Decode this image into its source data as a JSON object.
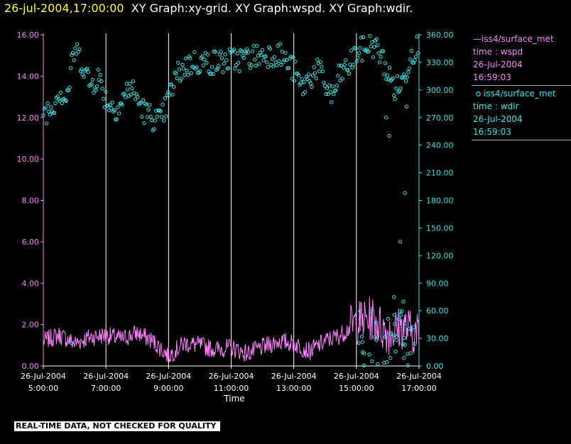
{
  "title": {
    "datetime": "26-jul-2004,17:00:00",
    "graphs": "XY Graph:xy-grid.  XY Graph:wspd.  XY Graph:wdir."
  },
  "legend": {
    "wspd": {
      "source": "iss4/surface_met",
      "variable": "time : wspd",
      "date": "26-Jul-2004",
      "time": "16:59:03"
    },
    "wdir": {
      "source": "iss4/surface_met",
      "variable": "time : wdir",
      "date": "26-Jul-2004",
      "time": "16:59:03"
    }
  },
  "banner": "REAL-TIME DATA, NOT CHECKED FOR QUALITY",
  "colors": {
    "wspd": "#ff80ff",
    "wdir": "#33e6e6",
    "title_date": "#ffff33",
    "grid": "#ffffff"
  },
  "chart_data": {
    "type": "line",
    "xlabel": "Time",
    "x_ticks": [
      {
        "hour": 5,
        "date": "26-Jul-2004",
        "time": "5:00:00"
      },
      {
        "hour": 7,
        "date": "26-Jul-2004",
        "time": "7:00:00"
      },
      {
        "hour": 9,
        "date": "26-Jul-2004",
        "time": "9:00:00"
      },
      {
        "hour": 11,
        "date": "26-Jul-2004",
        "time": "11:00:00"
      },
      {
        "hour": 13,
        "date": "26-Jul-2004",
        "time": "13:00:00"
      },
      {
        "hour": 15,
        "date": "26-Jul-2004",
        "time": "15:00:00"
      },
      {
        "hour": 17,
        "date": "26-Jul-2004",
        "time": "17:00:00"
      }
    ],
    "xlim_hours": [
      5,
      17
    ],
    "y_left": {
      "ylim": [
        0,
        16
      ],
      "ticks": [
        "0.00",
        "2.00",
        "4.00",
        "6.00",
        "8.00",
        "10.00",
        "12.00",
        "14.00",
        "16.00"
      ]
    },
    "y_right": {
      "ylim": [
        0,
        360
      ],
      "ticks": [
        "0.00",
        "30.00",
        "60.00",
        "90.00",
        "120.00",
        "150.00",
        "180.00",
        "210.00",
        "240.00",
        "270.00",
        "300.00",
        "330.00",
        "360.00"
      ]
    },
    "grid": "vertical lines at x ticks",
    "series": [
      {
        "name": "iss4/surface_met time : wspd",
        "axis": "left",
        "style": "line",
        "x": [
          5.0,
          5.5,
          6.0,
          6.5,
          7.0,
          7.5,
          8.0,
          8.5,
          9.0,
          9.5,
          10.0,
          10.5,
          11.0,
          11.5,
          12.0,
          12.5,
          13.0,
          13.5,
          14.0,
          14.5,
          15.0,
          15.5,
          16.0,
          16.5,
          17.0
        ],
        "y": [
          1.2,
          1.5,
          1.1,
          1.4,
          1.5,
          1.3,
          1.6,
          1.2,
          0.5,
          1.1,
          1.0,
          0.8,
          0.9,
          0.6,
          0.9,
          1.2,
          1.1,
          0.7,
          1.2,
          1.5,
          2.1,
          2.3,
          1.6,
          1.9,
          1.5
        ]
      },
      {
        "name": "iss4/surface_met time : wdir",
        "axis": "right",
        "style": "scatter",
        "x": [
          5.0,
          5.25,
          5.5,
          5.75,
          6.0,
          6.25,
          6.5,
          6.75,
          7.0,
          7.25,
          7.5,
          7.75,
          8.0,
          8.25,
          8.5,
          8.75,
          9.0,
          9.25,
          9.5,
          9.75,
          10.0,
          10.5,
          11.0,
          11.5,
          12.0,
          12.5,
          13.0,
          13.25,
          13.5,
          13.75,
          14.0,
          14.25,
          14.5,
          14.75,
          15.0,
          15.25,
          15.5,
          15.75,
          16.0,
          16.25,
          16.5,
          16.75,
          17.0
        ],
        "y": [
          276,
          280,
          300,
          290,
          345,
          330,
          305,
          315,
          290,
          280,
          285,
          305,
          290,
          275,
          270,
          265,
          290,
          315,
          325,
          330,
          330,
          330,
          332,
          335,
          338,
          340,
          322,
          302,
          312,
          325,
          305,
          292,
          318,
          325,
          340,
          345,
          350,
          340,
          318,
          300,
          310,
          340,
          350
        ]
      }
    ],
    "outliers_wdir": [
      {
        "x": 15.95,
        "y": 270
      },
      {
        "x": 16.05,
        "y": 250
      },
      {
        "x": 16.4,
        "y": 135
      },
      {
        "x": 16.55,
        "y": 188
      },
      {
        "x": 16.6,
        "y": 282
      },
      {
        "x": 15.2,
        "y": 15
      },
      {
        "x": 15.5,
        "y": 5
      },
      {
        "x": 16.2,
        "y": 75
      },
      {
        "x": 16.5,
        "y": 70
      },
      {
        "x": 5.9,
        "y": 25
      }
    ]
  }
}
